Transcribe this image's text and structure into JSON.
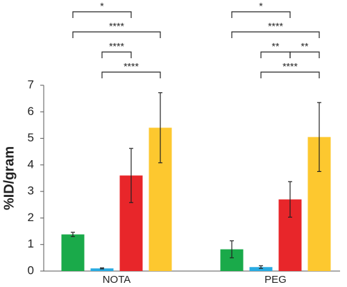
{
  "chart_data": {
    "type": "bar",
    "y_label": "%ID/gram",
    "categories": [
      "NOTA",
      "PEG"
    ],
    "series": [
      {
        "color": "#1aaa4a",
        "values": [
          1.38,
          0.82
        ],
        "errors": [
          0.08,
          0.32
        ]
      },
      {
        "color": "#29abe2",
        "values": [
          0.1,
          0.15
        ],
        "errors": [
          0.02,
          0.05
        ]
      },
      {
        "color": "#e8262a",
        "values": [
          3.6,
          2.7
        ],
        "errors": [
          1.02,
          0.67
        ]
      },
      {
        "color": "#fdc82f",
        "values": [
          5.4,
          5.05
        ],
        "errors": [
          1.32,
          1.3
        ]
      }
    ],
    "ylim": [
      0,
      7
    ],
    "yticks": [
      0,
      1,
      2,
      3,
      4,
      5,
      6,
      7
    ],
    "brackets": [
      {
        "category": 0,
        "rows": [
          [
            {
              "from": 0,
              "to": 2,
              "label": "*"
            }
          ],
          [
            {
              "from": 0,
              "to": 3,
              "label": "****"
            }
          ],
          [
            {
              "from": 1,
              "to": 2,
              "label": "****"
            }
          ],
          [
            {
              "from": 1,
              "to": 3,
              "label": "****"
            }
          ]
        ]
      },
      {
        "category": 1,
        "rows": [
          [
            {
              "from": 0,
              "to": 2,
              "label": "*"
            }
          ],
          [
            {
              "from": 0,
              "to": 3,
              "label": "****"
            }
          ],
          [
            {
              "from": 1,
              "to": 2,
              "label": "**"
            },
            {
              "from": 2,
              "to": 3,
              "label": "**"
            }
          ],
          [
            {
              "from": 1,
              "to": 3,
              "label": "****"
            }
          ]
        ]
      }
    ]
  }
}
